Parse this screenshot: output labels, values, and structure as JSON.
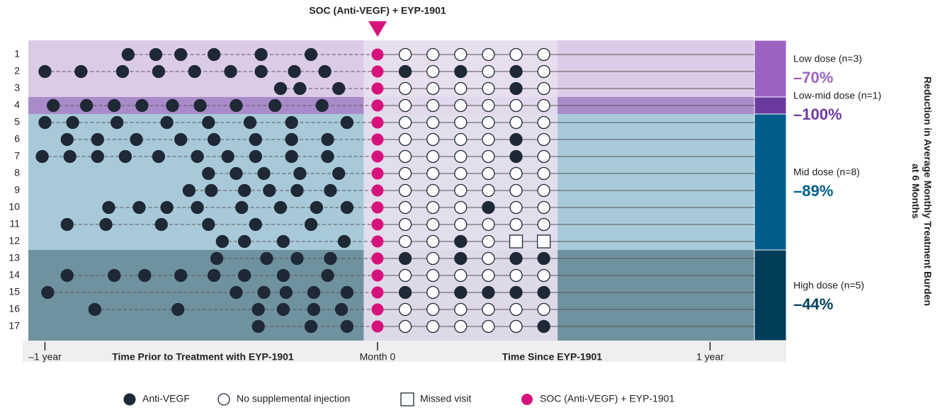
{
  "chart_data": {
    "type": "event",
    "title": "SOC (Anti-VEGF) + EYP-1901",
    "x_label_left": "Time Prior to Treatment with EYP-1901",
    "x_label_right": "Time Since EYP-1901",
    "right_title": [
      "Reduction in Average Monthly Treatment Burden",
      "at 6 Months"
    ],
    "xlim": [
      -12.6,
      13.6
    ],
    "xticks": [
      {
        "value": -12,
        "label": "–1 year"
      },
      {
        "value": 0,
        "label": "Month 0"
      },
      {
        "value": 12,
        "label": "1 year"
      }
    ],
    "treatment_month": 0,
    "visit_months": [
      1,
      2,
      3,
      4,
      5,
      6
    ],
    "rows": [
      {
        "label": "1",
        "prior": [
          -9.0,
          -8.0,
          -7.1,
          -5.9,
          -4.2,
          -2.4
        ],
        "post_injections": [],
        "missed": []
      },
      {
        "label": "2",
        "prior": [
          -12.0,
          -10.7,
          -9.2,
          -7.9,
          -6.6,
          -5.3,
          -4.2,
          -3.0,
          -1.9
        ],
        "post_injections": [
          1,
          3,
          5
        ],
        "missed": []
      },
      {
        "label": "3",
        "prior": [
          -3.5,
          -2.8,
          -1.4
        ],
        "post_injections": [
          5
        ],
        "missed": []
      },
      {
        "label": "4",
        "prior": [
          -11.7,
          -10.5,
          -9.5,
          -8.5,
          -7.4,
          -6.4,
          -5.1,
          -3.7,
          -2.0
        ],
        "post_injections": [],
        "missed": []
      },
      {
        "label": "5",
        "prior": [
          -12.0,
          -11.0,
          -9.4,
          -7.6,
          -6.1,
          -4.6,
          -3.1,
          -1.1
        ],
        "post_injections": [],
        "missed": []
      },
      {
        "label": "6",
        "prior": [
          -11.2,
          -10.1,
          -8.7,
          -7.1,
          -5.9,
          -4.4,
          -3.1,
          -1.8
        ],
        "post_injections": [
          5
        ],
        "missed": []
      },
      {
        "label": "7",
        "prior": [
          -12.1,
          -11.1,
          -10.1,
          -9.1,
          -7.9,
          -6.5,
          -5.4,
          -4.4,
          -3.1,
          -1.8
        ],
        "post_injections": [
          5
        ],
        "missed": []
      },
      {
        "label": "8",
        "prior": [
          -6.1,
          -5.1,
          -4.1,
          -2.8,
          -1.4
        ],
        "post_injections": [],
        "missed": []
      },
      {
        "label": "9",
        "prior": [
          -6.8,
          -6.0,
          -4.8,
          -3.9,
          -2.9,
          -1.7
        ],
        "post_injections": [],
        "missed": []
      },
      {
        "label": "10",
        "prior": [
          -9.7,
          -8.6,
          -7.6,
          -6.5,
          -4.9,
          -3.5,
          -2.2,
          -1.1
        ],
        "post_injections": [
          4
        ],
        "missed": []
      },
      {
        "label": "11",
        "prior": [
          -11.2,
          -9.8,
          -7.8,
          -6.1,
          -4.4,
          -2.4
        ],
        "post_injections": [],
        "missed": []
      },
      {
        "label": "12",
        "prior": [
          -5.6,
          -4.8,
          -3.4,
          -1.2
        ],
        "post_injections": [
          3
        ],
        "missed": [
          5,
          6
        ]
      },
      {
        "label": "13",
        "prior": [
          -5.8,
          -4.0,
          -2.9,
          -1.7
        ],
        "post_injections": [
          1,
          3,
          5,
          6
        ],
        "missed": []
      },
      {
        "label": "14",
        "prior": [
          -11.2,
          -9.5,
          -8.4,
          -7.1,
          -5.9,
          -4.8,
          -3.4,
          -1.8
        ],
        "post_injections": [],
        "missed": []
      },
      {
        "label": "15",
        "prior": [
          -11.9,
          -5.1,
          -4.1,
          -3.3,
          -2.3,
          -1.1
        ],
        "post_injections": [
          1,
          3,
          4,
          5,
          6
        ],
        "missed": []
      },
      {
        "label": "16",
        "prior": [
          -10.2,
          -7.2,
          -4.3,
          -3.4,
          -2.3,
          -1.3
        ],
        "post_injections": [],
        "missed": []
      },
      {
        "label": "17",
        "prior": [
          -4.3,
          -2.4,
          -1.1
        ],
        "post_injections": [
          6
        ],
        "missed": []
      }
    ],
    "groups": [
      {
        "name": "Low dose (n=3)",
        "row_count": 3,
        "value": -70,
        "value_label": "–70%",
        "background": "#dccbe6",
        "color": "#9b62c2"
      },
      {
        "name": "Low-mid dose (n=1)",
        "row_count": 1,
        "value": -100,
        "value_label": "–100%",
        "background": "#a98bca",
        "color": "#6a3aa0"
      },
      {
        "name": "Mid dose (n=8)",
        "row_count": 8,
        "value": -89,
        "value_label": "–89%",
        "background": "#a8cad8",
        "color": "#005d8c"
      },
      {
        "name": "High dose (n=5)",
        "row_count": 5,
        "value": -44,
        "value_label": "–44%",
        "background": "#6f929f",
        "color": "#003e5a"
      }
    ],
    "legend": [
      "Anti-VEGF",
      "No supplemental injection",
      "Missed visit",
      "SOC (Anti-VEGF) + EYP-1901"
    ],
    "colors": {
      "injection": "#1e2935",
      "treatment": "#d6137c",
      "post_band": "#e7dfef"
    }
  }
}
